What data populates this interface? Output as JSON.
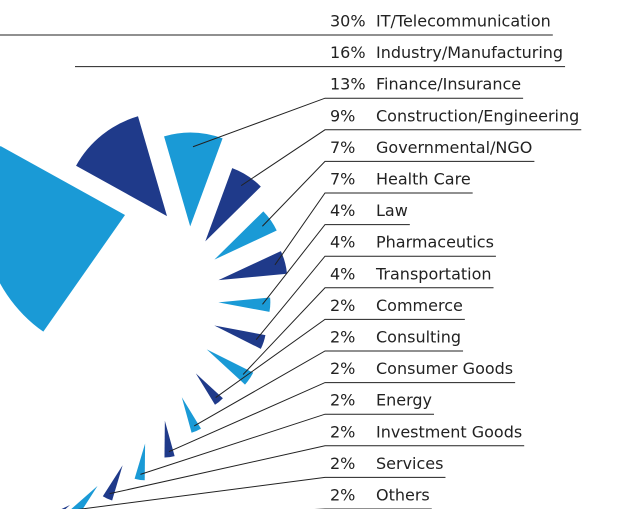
{
  "chart_data": {
    "type": "spiral",
    "categories": [
      "IT/Telecommunication",
      "Industry/Manufacturing",
      "Finance/Insurance",
      "Construction/Engineering",
      "Governmental/NGO",
      "Health Care",
      "Law",
      "Pharmaceutics",
      "Transportation",
      "Commerce",
      "Consulting",
      "Consumer Goods",
      "Energy",
      "Investment Goods",
      "Services",
      "Others"
    ],
    "values": [
      30,
      16,
      13,
      9,
      7,
      7,
      4,
      4,
      4,
      2,
      2,
      2,
      2,
      2,
      2,
      2
    ],
    "value_labels": [
      "30%",
      "16%",
      "13%",
      "9%",
      "7%",
      "7%",
      "4%",
      "4%",
      "4%",
      "2%",
      "2%",
      "2%",
      "2%",
      "2%",
      "2%",
      "2%"
    ],
    "colors": [
      "#1a9ad6",
      "#1f3a8a"
    ]
  }
}
